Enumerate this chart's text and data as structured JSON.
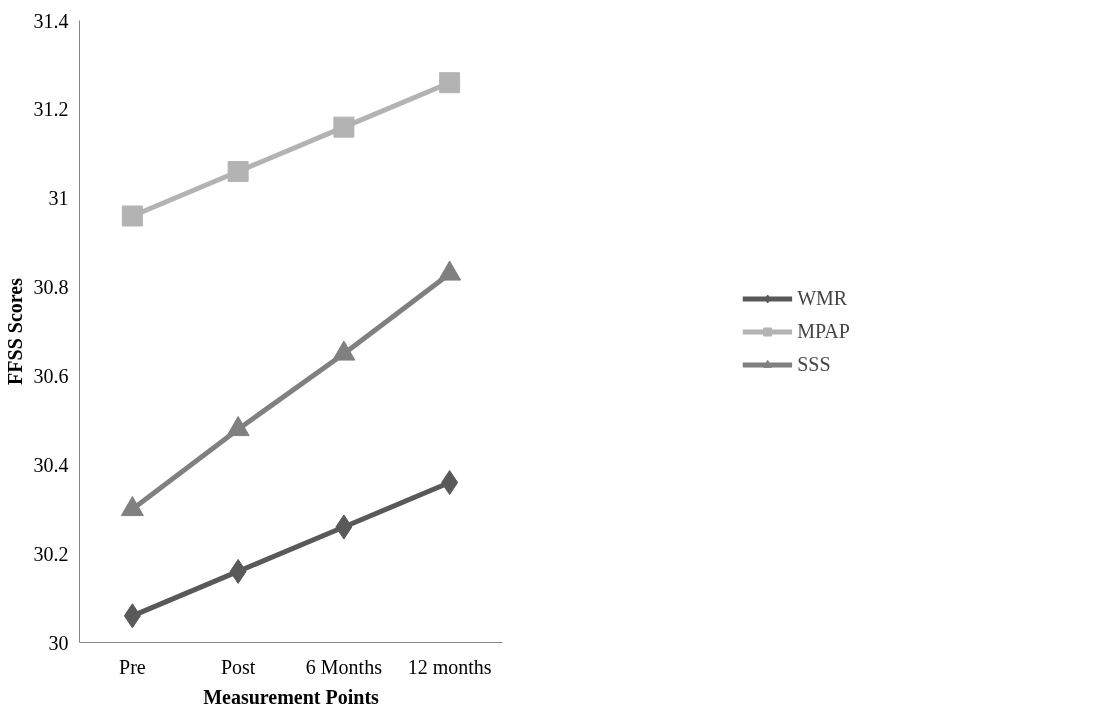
{
  "chart_data": {
    "type": "line",
    "xlabel": "Measurement Points",
    "ylabel": "FFSS Scores",
    "categories": [
      "Pre",
      "Post",
      "6 Months",
      "12 months"
    ],
    "series": [
      {
        "name": "WMR",
        "color": "#595959",
        "marker": "diamond",
        "values": [
          30.06,
          30.16,
          30.26,
          30.36
        ]
      },
      {
        "name": "MPAP",
        "color": "#b3b3b3",
        "marker": "square",
        "values": [
          30.96,
          31.06,
          31.16,
          31.26
        ]
      },
      {
        "name": "SSS",
        "color": "#808080",
        "marker": "triangle",
        "values": [
          30.3,
          30.48,
          30.65,
          30.83
        ]
      }
    ],
    "ylim": [
      30,
      31.4
    ],
    "yticks": [
      30,
      30.2,
      30.4,
      30.6,
      30.8,
      31,
      31.2,
      31.4
    ],
    "grid": false,
    "legend": "right",
    "line_style": "solid"
  }
}
